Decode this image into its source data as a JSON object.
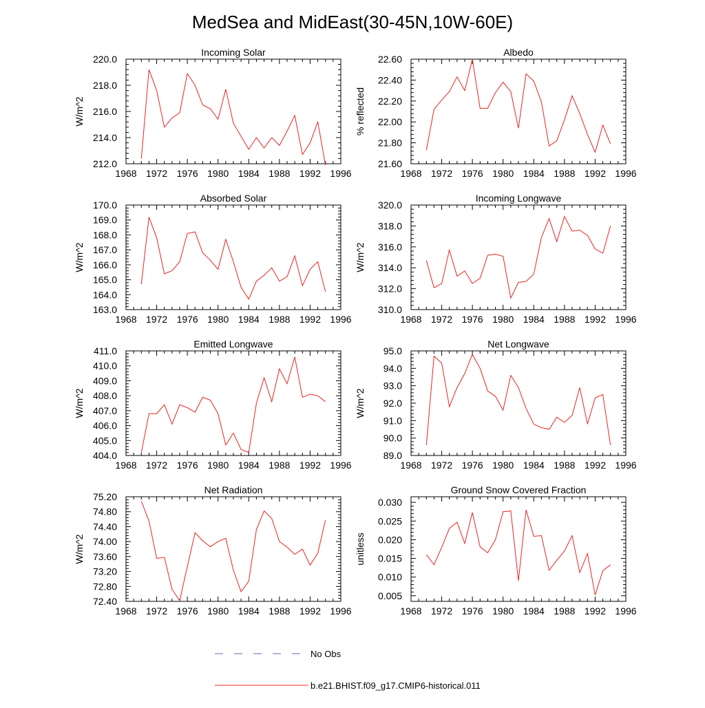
{
  "title": "MedSea and MidEast(30-45N,10W-60E)",
  "colors": {
    "model": "#e8231f",
    "obs": "#5b6aa8",
    "frame": "#000000"
  },
  "legend": {
    "obs_label": "No Obs",
    "model_label": "b.e21.BHIST.f09_g17.CMIP6-historical.011"
  },
  "chart_data": [
    {
      "type": "line",
      "title": "Incoming Solar",
      "ylabel": "W/m^2",
      "xlim": [
        1968,
        1996
      ],
      "xticks": [
        1968,
        1972,
        1976,
        1980,
        1984,
        1988,
        1992,
        1996
      ],
      "ylim": [
        212.0,
        220.0
      ],
      "yticks": [
        "212.0",
        "214.0",
        "216.0",
        "218.0",
        "220.0"
      ],
      "series": [
        {
          "x": [
            1970,
            1971,
            1972,
            1973,
            1974,
            1975,
            1976,
            1977,
            1978,
            1979,
            1980,
            1981,
            1982,
            1983,
            1984,
            1985,
            1986,
            1987,
            1988,
            1989,
            1990,
            1991,
            1992,
            1993,
            1994
          ],
          "values": [
            212.4,
            219.2,
            217.6,
            214.8,
            215.5,
            215.9,
            218.9,
            218.0,
            216.5,
            216.2,
            215.4,
            217.7,
            215.1,
            214.1,
            213.1,
            214.0,
            213.2,
            214.0,
            213.4,
            214.5,
            215.7,
            212.7,
            213.6,
            215.2,
            211.9
          ]
        }
      ]
    },
    {
      "type": "line",
      "title": "Albedo",
      "ylabel": "% reflected",
      "xlim": [
        1968,
        1996
      ],
      "xticks": [
        1968,
        1972,
        1976,
        1980,
        1984,
        1988,
        1992,
        1996
      ],
      "ylim": [
        21.6,
        22.6
      ],
      "yticks": [
        "21.60",
        "21.80",
        "22.00",
        "22.20",
        "22.40",
        "22.60"
      ],
      "series": [
        {
          "x": [
            1970,
            1971,
            1972,
            1973,
            1974,
            1975,
            1976,
            1977,
            1978,
            1979,
            1980,
            1981,
            1982,
            1983,
            1984,
            1985,
            1986,
            1987,
            1988,
            1989,
            1990,
            1991,
            1992,
            1993,
            1994
          ],
          "values": [
            21.73,
            22.12,
            22.21,
            22.29,
            22.43,
            22.3,
            22.6,
            22.13,
            22.13,
            22.28,
            22.38,
            22.29,
            21.94,
            22.46,
            22.39,
            22.19,
            21.77,
            21.82,
            22.02,
            22.25,
            22.08,
            21.88,
            21.71,
            21.97,
            21.79
          ]
        }
      ]
    },
    {
      "type": "line",
      "title": "Absorbed Solar",
      "ylabel": "W/m^2",
      "xlim": [
        1968,
        1996
      ],
      "xticks": [
        1968,
        1972,
        1976,
        1980,
        1984,
        1988,
        1992,
        1996
      ],
      "ylim": [
        163.0,
        170.0
      ],
      "yticks": [
        "163.0",
        "164.0",
        "165.0",
        "166.0",
        "167.0",
        "168.0",
        "169.0",
        "170.0"
      ],
      "series": [
        {
          "x": [
            1970,
            1971,
            1972,
            1973,
            1974,
            1975,
            1976,
            1977,
            1978,
            1979,
            1980,
            1981,
            1982,
            1983,
            1984,
            1985,
            1986,
            1987,
            1988,
            1989,
            1990,
            1991,
            1992,
            1993,
            1994
          ],
          "values": [
            164.7,
            169.2,
            167.8,
            165.4,
            165.6,
            166.2,
            168.1,
            168.2,
            166.8,
            166.3,
            165.7,
            167.7,
            166.2,
            164.5,
            163.7,
            164.9,
            165.3,
            165.8,
            164.9,
            165.2,
            166.6,
            164.6,
            165.7,
            166.2,
            164.2
          ]
        }
      ]
    },
    {
      "type": "line",
      "title": "Incoming Longwave",
      "ylabel": "W/m^2",
      "xlim": [
        1968,
        1996
      ],
      "xticks": [
        1968,
        1972,
        1976,
        1980,
        1984,
        1988,
        1992,
        1996
      ],
      "ylim": [
        310.0,
        320.0
      ],
      "yticks": [
        "310.0",
        "312.0",
        "314.0",
        "316.0",
        "318.0",
        "320.0"
      ],
      "series": [
        {
          "x": [
            1970,
            1971,
            1972,
            1973,
            1974,
            1975,
            1976,
            1977,
            1978,
            1979,
            1980,
            1981,
            1982,
            1983,
            1984,
            1985,
            1986,
            1987,
            1988,
            1989,
            1990,
            1991,
            1992,
            1993,
            1994
          ],
          "values": [
            314.7,
            312.1,
            312.5,
            315.7,
            313.2,
            313.7,
            312.5,
            313.0,
            315.2,
            315.3,
            315.1,
            311.1,
            312.6,
            312.7,
            313.4,
            316.9,
            318.7,
            316.5,
            318.9,
            317.5,
            317.6,
            317.1,
            315.8,
            315.4,
            318.0
          ]
        }
      ]
    },
    {
      "type": "line",
      "title": "Emitted Longwave",
      "ylabel": "W/m^2",
      "xlim": [
        1968,
        1996
      ],
      "xticks": [
        1968,
        1972,
        1976,
        1980,
        1984,
        1988,
        1992,
        1996
      ],
      "ylim": [
        404.0,
        411.0
      ],
      "yticks": [
        "404.0",
        "405.0",
        "406.0",
        "407.0",
        "408.0",
        "409.0",
        "410.0",
        "411.0"
      ],
      "series": [
        {
          "x": [
            1970,
            1971,
            1972,
            1973,
            1974,
            1975,
            1976,
            1977,
            1978,
            1979,
            1980,
            1981,
            1982,
            1983,
            1984,
            1985,
            1986,
            1987,
            1988,
            1989,
            1990,
            1991,
            1992,
            1993,
            1994
          ],
          "values": [
            404.2,
            406.8,
            406.8,
            407.4,
            406.1,
            407.4,
            407.2,
            406.9,
            407.9,
            407.7,
            406.8,
            404.7,
            405.5,
            404.4,
            404.2,
            407.5,
            409.2,
            407.6,
            409.8,
            408.8,
            410.6,
            407.9,
            408.1,
            408.0,
            407.6
          ]
        }
      ]
    },
    {
      "type": "line",
      "title": "Net Longwave",
      "ylabel": "W/m^2",
      "xlim": [
        1968,
        1996
      ],
      "xticks": [
        1968,
        1972,
        1976,
        1980,
        1984,
        1988,
        1992,
        1996
      ],
      "ylim": [
        89.0,
        95.0
      ],
      "yticks": [
        "89.0",
        "90.0",
        "91.0",
        "92.0",
        "93.0",
        "94.0",
        "95.0"
      ],
      "series": [
        {
          "x": [
            1970,
            1971,
            1972,
            1973,
            1974,
            1975,
            1976,
            1977,
            1978,
            1979,
            1980,
            1981,
            1982,
            1983,
            1984,
            1985,
            1986,
            1987,
            1988,
            1989,
            1990,
            1991,
            1992,
            1993,
            1994
          ],
          "values": [
            89.6,
            94.7,
            94.3,
            91.8,
            92.9,
            93.7,
            94.8,
            94.0,
            92.7,
            92.4,
            91.6,
            93.6,
            92.9,
            91.7,
            90.8,
            90.6,
            90.5,
            91.2,
            90.9,
            91.3,
            92.9,
            90.8,
            92.3,
            92.5,
            89.6
          ]
        }
      ]
    },
    {
      "type": "line",
      "title": "Net Radiation",
      "ylabel": "W/m^2",
      "xlim": [
        1968,
        1996
      ],
      "xticks": [
        1968,
        1972,
        1976,
        1980,
        1984,
        1988,
        1992,
        1996
      ],
      "ylim": [
        72.4,
        75.2
      ],
      "yticks": [
        "72.40",
        "72.80",
        "73.20",
        "73.60",
        "74.00",
        "74.40",
        "74.80",
        "75.20"
      ],
      "series": [
        {
          "x": [
            1970,
            1971,
            1972,
            1973,
            1974,
            1975,
            1976,
            1977,
            1978,
            1979,
            1980,
            1981,
            1982,
            1983,
            1984,
            1985,
            1986,
            1987,
            1988,
            1989,
            1990,
            1991,
            1992,
            1993,
            1994
          ],
          "values": [
            75.08,
            74.55,
            73.55,
            73.58,
            72.72,
            72.42,
            73.33,
            74.24,
            74.02,
            73.86,
            74.0,
            74.09,
            73.23,
            72.66,
            72.94,
            74.32,
            74.82,
            74.62,
            74.0,
            73.85,
            73.66,
            73.8,
            73.37,
            73.69,
            74.58
          ]
        }
      ]
    },
    {
      "type": "line",
      "title": "Ground Snow Covered Fraction",
      "ylabel": "unitless",
      "xlim": [
        1968,
        1996
      ],
      "xticks": [
        1968,
        1972,
        1976,
        1980,
        1984,
        1988,
        1992,
        1996
      ],
      "ylim": [
        0.0035,
        0.0315
      ],
      "yticks": [
        "0.005",
        "0.010",
        "0.015",
        "0.020",
        "0.025",
        "0.030"
      ],
      "ytick_values": [
        0.005,
        0.01,
        0.015,
        0.02,
        0.025,
        0.03
      ],
      "series": [
        {
          "x": [
            1970,
            1971,
            1972,
            1973,
            1974,
            1975,
            1976,
            1977,
            1978,
            1979,
            1980,
            1981,
            1982,
            1983,
            1984,
            1985,
            1986,
            1987,
            1988,
            1989,
            1990,
            1991,
            1992,
            1993,
            1994
          ],
          "values": [
            0.016,
            0.0133,
            0.018,
            0.023,
            0.0247,
            0.019,
            0.0273,
            0.0181,
            0.0165,
            0.02,
            0.0275,
            0.0277,
            0.009,
            0.028,
            0.0209,
            0.0211,
            0.0118,
            0.0145,
            0.017,
            0.0211,
            0.0112,
            0.0163,
            0.0052,
            0.0117,
            0.0133
          ]
        }
      ]
    }
  ]
}
